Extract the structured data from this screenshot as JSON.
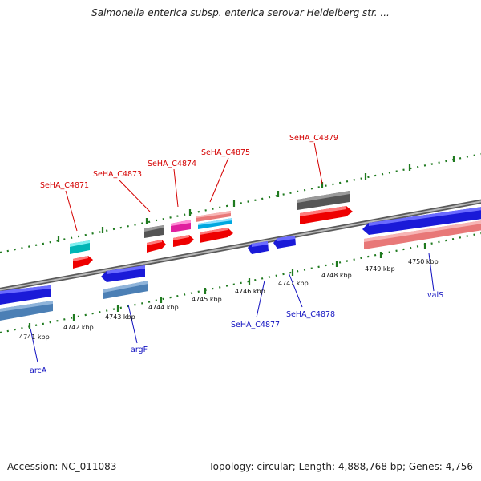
{
  "title": "Salmonella enterica subsp. enterica serovar Heidelberg str. ...",
  "footer": {
    "accession": "Accession: NC_011083",
    "summary": "Topology: circular; Length: 4,888,768 bp; Genes: 4,756"
  },
  "colors": {
    "label_top": "#d40000",
    "label_bottom": "#1010c0",
    "backbone": "#8c8c8c",
    "tick_green": "#1f7a1f"
  },
  "axis": {
    "unit": "kbp",
    "ticks": [
      {
        "label": "4741 kbp"
      },
      {
        "label": "4742 kbp"
      },
      {
        "label": "4743 kbp"
      },
      {
        "label": "4744 kbp"
      },
      {
        "label": "4745 kbp"
      },
      {
        "label": "4746 kbp"
      },
      {
        "label": "4747 kbp"
      },
      {
        "label": "4748 kbp"
      },
      {
        "label": "4749 kbp"
      },
      {
        "label": "4750 kbp"
      }
    ]
  },
  "labels_top": [
    {
      "text": "SeHA_C4871"
    },
    {
      "text": "SeHA_C4873"
    },
    {
      "text": "SeHA_C4874"
    },
    {
      "text": "SeHA_C4875"
    },
    {
      "text": "SeHA_C4879"
    }
  ],
  "labels_bottom": [
    {
      "text": "arcA"
    },
    {
      "text": "argF"
    },
    {
      "text": "SeHA_C4877"
    },
    {
      "text": "SeHA_C4878"
    },
    {
      "text": "valS"
    }
  ]
}
